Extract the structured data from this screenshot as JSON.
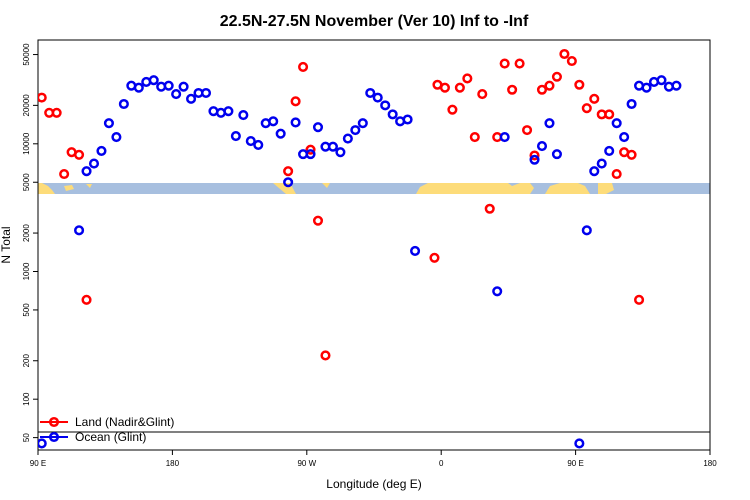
{
  "chart_data": {
    "type": "scatter",
    "title": "22.5N-27.5N November (Ver 10)   Inf to -Inf",
    "xlabel": "Longitude (deg E)",
    "ylabel": "N Total",
    "x_ticks": [
      {
        "lon": 90,
        "label": "90 E"
      },
      {
        "lon": 180,
        "label": "180"
      },
      {
        "lon": 270,
        "label": "90 W"
      },
      {
        "lon": 360,
        "label": "0"
      },
      {
        "lon": 450,
        "label": "90 E"
      },
      {
        "lon": 540,
        "label": "180"
      }
    ],
    "xlim": [
      90,
      540
    ],
    "y_scale": "log",
    "ylim": [
      40,
      65000
    ],
    "y_ticks": [
      50,
      100,
      200,
      500,
      1000,
      2000,
      5000,
      10000,
      20000,
      50000
    ],
    "colors": {
      "land": "#ff0000",
      "ocean": "#0000ee",
      "map_ocean": "#a7bfdf",
      "map_land": "#fddc7a",
      "frame": "#000000"
    },
    "legend_position": "bottom-left",
    "series": [
      {
        "name": "Land (Nadir&Glint)",
        "color": "#ff0000",
        "points": [
          [
            92.5,
            23000
          ],
          [
            97.5,
            17500
          ],
          [
            102.5,
            17500
          ],
          [
            107.5,
            5800
          ],
          [
            112.5,
            8600
          ],
          [
            117.5,
            8200
          ],
          [
            122.5,
            600
          ],
          [
            257.5,
            6100
          ],
          [
            262.5,
            21500
          ],
          [
            267.5,
            40000
          ],
          [
            272.5,
            9000
          ],
          [
            277.5,
            2500
          ],
          [
            282.5,
            220
          ],
          [
            355.5,
            1280
          ],
          [
            357.5,
            29000
          ],
          [
            362.5,
            27500
          ],
          [
            367.5,
            18500
          ],
          [
            372.5,
            27500
          ],
          [
            377.5,
            32500
          ],
          [
            382.5,
            11300
          ],
          [
            387.5,
            24500
          ],
          [
            392.5,
            3100
          ],
          [
            397.5,
            11300
          ],
          [
            402.5,
            42500
          ],
          [
            407.5,
            26500
          ],
          [
            412.5,
            42500
          ],
          [
            417.5,
            12800
          ],
          [
            422.5,
            8100
          ],
          [
            427.5,
            26500
          ],
          [
            432.5,
            28500
          ],
          [
            437.5,
            33500
          ],
          [
            442.5,
            50500
          ],
          [
            447.5,
            44500
          ],
          [
            452.5,
            29000
          ],
          [
            457.5,
            19000
          ],
          [
            462.5,
            22500
          ],
          [
            467.5,
            17000
          ],
          [
            472.5,
            17000
          ],
          [
            477.5,
            5800
          ],
          [
            482.5,
            8600
          ],
          [
            487.5,
            8200
          ],
          [
            492.5,
            600
          ]
        ]
      },
      {
        "name": "Ocean (Glint)",
        "color": "#0000ee",
        "points": [
          [
            92.5,
            45
          ],
          [
            117.5,
            2100
          ],
          [
            122.5,
            6100
          ],
          [
            127.5,
            7000
          ],
          [
            132.5,
            8800
          ],
          [
            137.5,
            14500
          ],
          [
            142.5,
            11300
          ],
          [
            147.5,
            20500
          ],
          [
            152.5,
            28500
          ],
          [
            157.5,
            27500
          ],
          [
            162.5,
            30500
          ],
          [
            167.5,
            31500
          ],
          [
            172.5,
            28000
          ],
          [
            177.5,
            28500
          ],
          [
            182.5,
            24500
          ],
          [
            187.5,
            28000
          ],
          [
            192.5,
            22500
          ],
          [
            197.5,
            25000
          ],
          [
            202.5,
            25000
          ],
          [
            207.5,
            18000
          ],
          [
            212.5,
            17500
          ],
          [
            217.5,
            18000
          ],
          [
            222.5,
            11500
          ],
          [
            227.5,
            16800
          ],
          [
            232.5,
            10500
          ],
          [
            237.5,
            9800
          ],
          [
            242.5,
            14500
          ],
          [
            247.5,
            15000
          ],
          [
            252.5,
            12000
          ],
          [
            257.5,
            5000
          ],
          [
            262.5,
            14700
          ],
          [
            267.5,
            8300
          ],
          [
            272.5,
            8300
          ],
          [
            277.5,
            13500
          ],
          [
            282.5,
            9500
          ],
          [
            287.5,
            9500
          ],
          [
            292.5,
            8600
          ],
          [
            297.5,
            11000
          ],
          [
            302.5,
            12800
          ],
          [
            307.5,
            14500
          ],
          [
            312.5,
            25000
          ],
          [
            317.5,
            23000
          ],
          [
            322.5,
            20000
          ],
          [
            327.5,
            17000
          ],
          [
            332.5,
            15000
          ],
          [
            337.5,
            15500
          ],
          [
            342.5,
            1450
          ],
          [
            397.5,
            700
          ],
          [
            402.5,
            11300
          ],
          [
            422.5,
            7500
          ],
          [
            427.5,
            9600
          ],
          [
            432.5,
            14500
          ],
          [
            437.5,
            8300
          ],
          [
            452.5,
            45
          ],
          [
            457.5,
            2100
          ],
          [
            462.5,
            6100
          ],
          [
            467.5,
            7000
          ],
          [
            472.5,
            8800
          ],
          [
            477.5,
            14500
          ],
          [
            482.5,
            11300
          ],
          [
            487.5,
            20500
          ],
          [
            492.5,
            28500
          ],
          [
            497.5,
            27500
          ],
          [
            502.5,
            30500
          ],
          [
            507.5,
            31500
          ],
          [
            512.5,
            28000
          ],
          [
            517.5,
            28500
          ]
        ]
      }
    ]
  }
}
